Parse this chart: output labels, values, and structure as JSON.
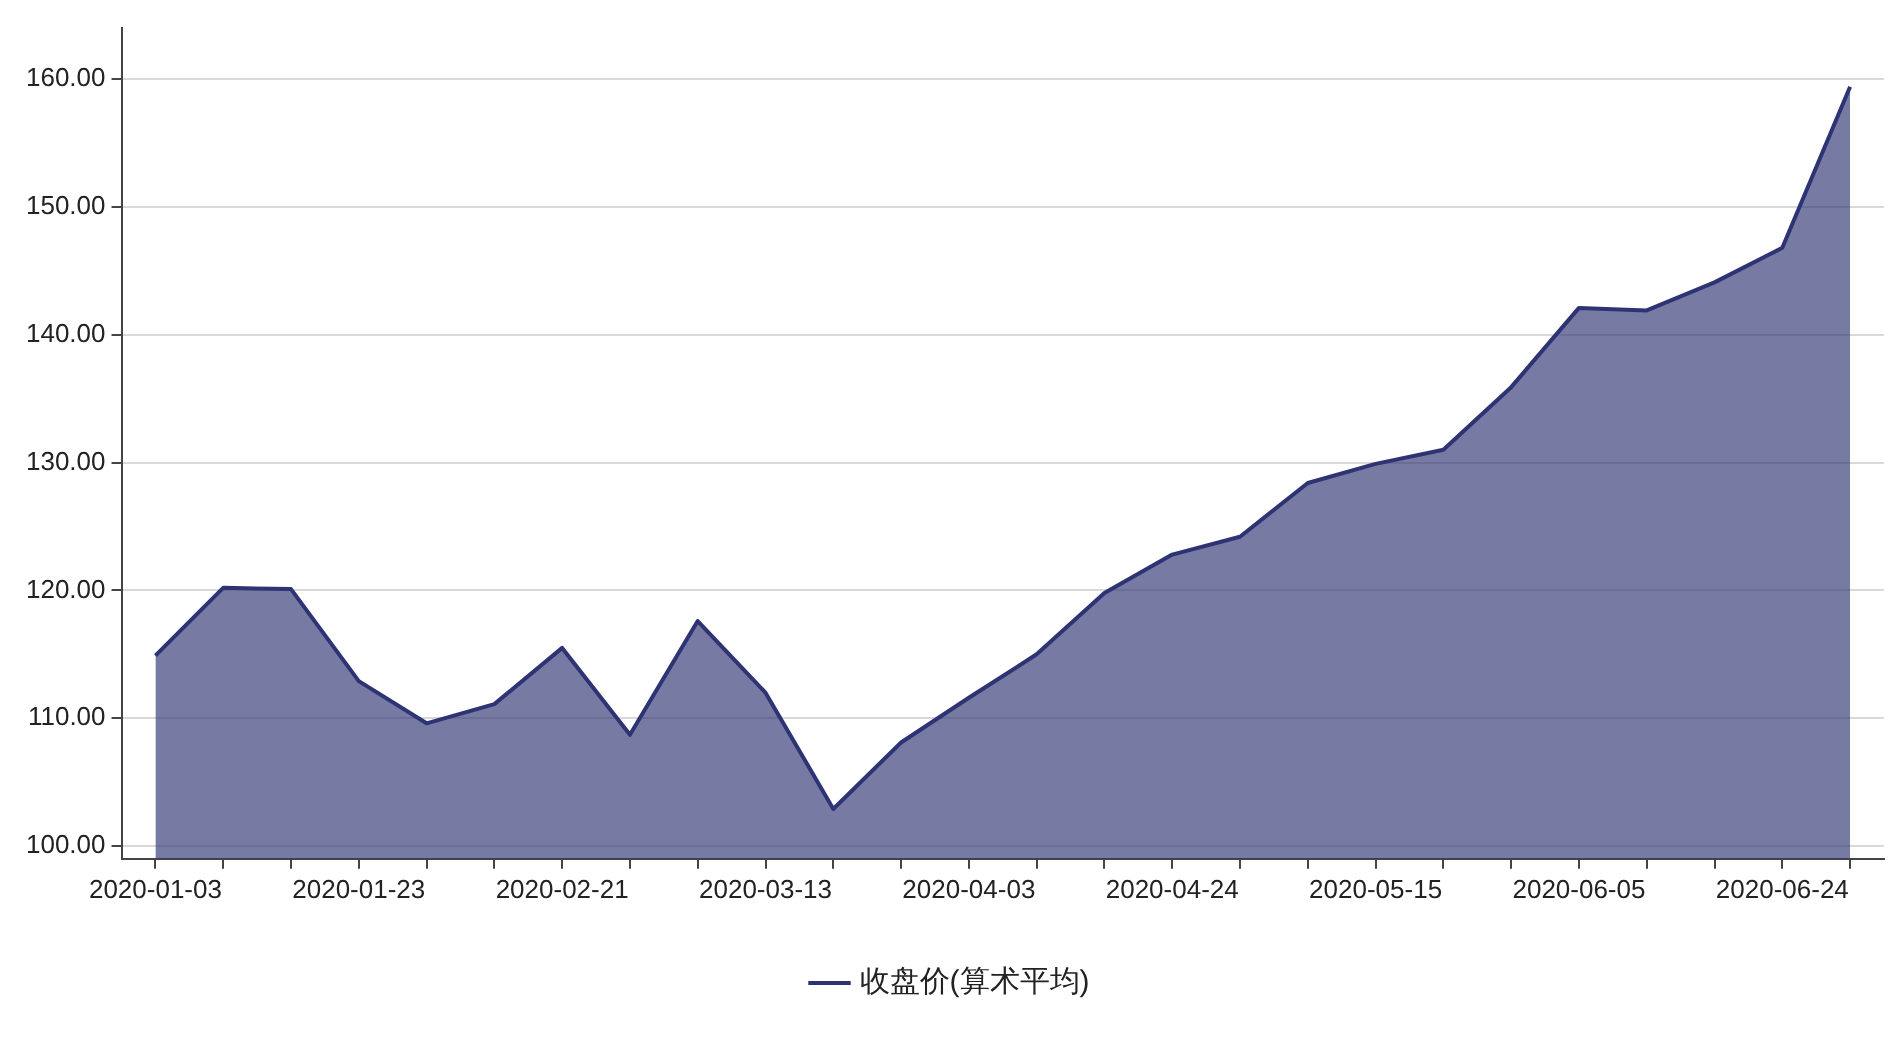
{
  "chart_data": {
    "type": "area",
    "categories": [
      "2020-01-03",
      null,
      null,
      "2020-01-23",
      null,
      null,
      "2020-02-21",
      null,
      null,
      "2020-03-13",
      null,
      null,
      "2020-04-03",
      null,
      null,
      "2020-04-24",
      null,
      null,
      "2020-05-15",
      null,
      null,
      "2020-06-05",
      null,
      null,
      "2020-06-24",
      null
    ],
    "series": [
      {
        "name": "收盘价(算术平均)",
        "color": "#2e3473",
        "values": [
          114.9,
          120.2,
          120.1,
          112.9,
          109.6,
          111.1,
          115.5,
          108.7,
          117.6,
          112.0,
          102.9,
          108.1,
          111.6,
          115.0,
          119.8,
          122.8,
          124.2,
          128.4,
          129.9,
          131.0,
          135.9,
          142.1,
          141.9,
          144.1,
          146.8,
          159.4
        ]
      }
    ],
    "ylim": [
      99,
      164
    ],
    "yticks": [
      {
        "value": 100,
        "label": "100.00"
      },
      {
        "value": 110,
        "label": "110.00"
      },
      {
        "value": 120,
        "label": "120.00"
      },
      {
        "value": 130,
        "label": "130.00"
      },
      {
        "value": 140,
        "label": "140.00"
      },
      {
        "value": 150,
        "label": "150.00"
      },
      {
        "value": 160,
        "label": "160.00"
      }
    ],
    "grid": "y",
    "legend": "bottom",
    "marker": "none",
    "line_style": "solid"
  }
}
